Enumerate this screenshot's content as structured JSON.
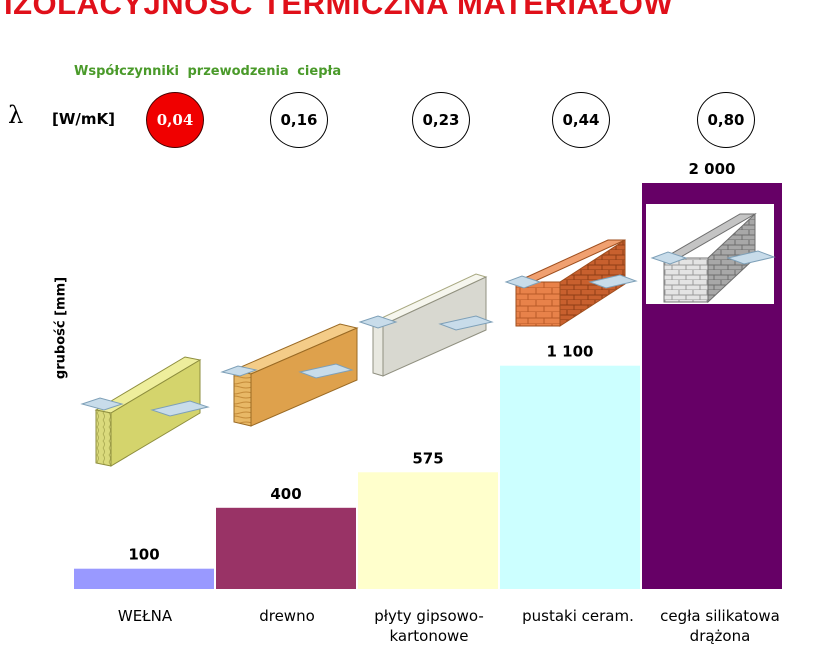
{
  "chart_data": {
    "type": "bar",
    "title": "IZOLACYJNOŚĆ TERMICZNA MATERIAŁÓW",
    "subtitle": "Współczynniki przewodzenia ciepła",
    "lambda_symbol": "λ",
    "lambda_unit": "[W/mK]",
    "ylabel": "grubość [mm]",
    "categories": [
      "WEŁNA",
      "drewno",
      "płyty gipsowo-kartonowe",
      "pustaki ceram.",
      "cegła silikatowa drążona"
    ],
    "category_lines": [
      [
        "WEŁNA"
      ],
      [
        "drewno"
      ],
      [
        "płyty gipsowo-",
        "kartonowe"
      ],
      [
        "pustaki ceram."
      ],
      [
        "cegła silikatowa",
        "drążona"
      ]
    ],
    "values": [
      100,
      400,
      575,
      1100,
      2000
    ],
    "value_labels": [
      "100",
      "400",
      "575",
      "1 100",
      "2 000"
    ],
    "lambda_values": [
      "0,04",
      "0,16",
      "0,23",
      "0,44",
      "0,80"
    ],
    "highlighted_index": 0,
    "bar_colors": [
      "#9999ff",
      "#993366",
      "#ffffcc",
      "#ccffff",
      "#660066"
    ],
    "ylim": [
      0,
      2000
    ],
    "grid": false,
    "legend": "none"
  }
}
